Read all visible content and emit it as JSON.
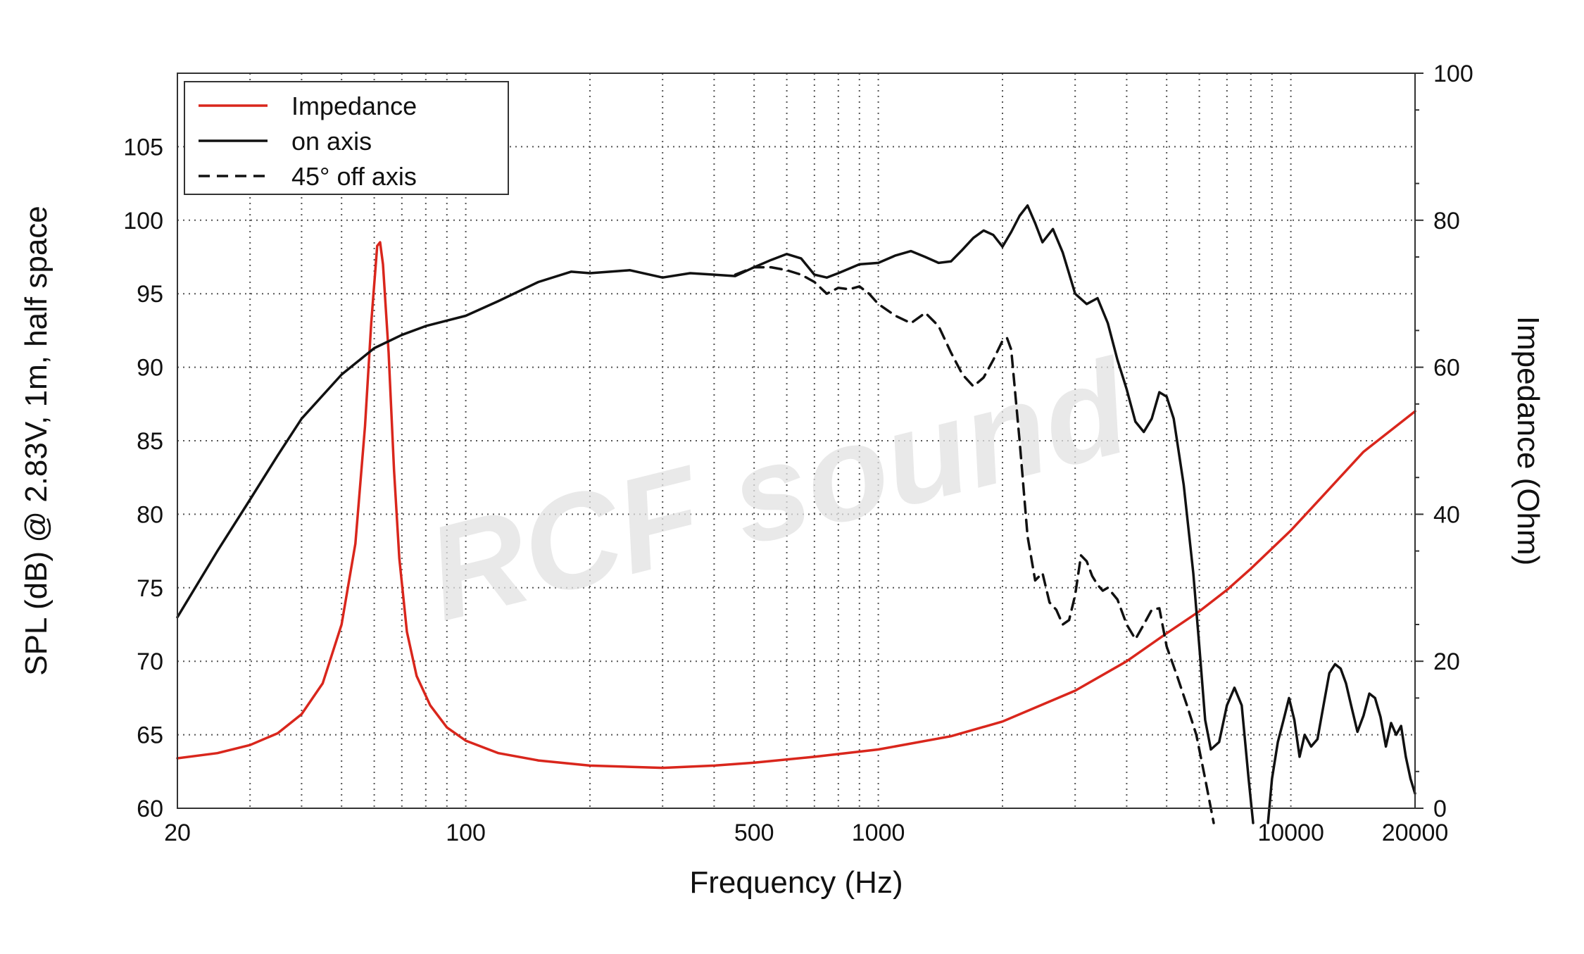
{
  "chart_data": {
    "type": "line",
    "xlabel": "Frequency (Hz)",
    "ylabel": "SPL (dB) @ 2.83V, 1m, half space",
    "y2label": "Impedance (Ohm)",
    "x_scale": "log",
    "xlim": [
      20,
      20000
    ],
    "ylim": [
      60,
      110
    ],
    "y2lim": [
      0,
      100
    ],
    "grid": true,
    "legend_position": "top-left",
    "x_ticks": [
      20,
      100,
      500,
      1000,
      10000,
      20000
    ],
    "x_tick_labels": [
      "20",
      "100",
      "500",
      "1000",
      "10000",
      "20000"
    ],
    "y_ticks": [
      60,
      65,
      70,
      75,
      80,
      85,
      90,
      95,
      100,
      105
    ],
    "y_tick_labels": [
      "60",
      "65",
      "70",
      "75",
      "80",
      "85",
      "90",
      "95",
      "100",
      "105"
    ],
    "y2_ticks": [
      0,
      20,
      40,
      60,
      80,
      100
    ],
    "y2_tick_labels": [
      "0",
      "20",
      "40",
      "60",
      "80",
      "100"
    ],
    "watermark": "RCF sound",
    "series": [
      {
        "name": "Impedance",
        "axis": "right",
        "color": "#d9261c",
        "dash": "solid",
        "points": [
          [
            20,
            6.8
          ],
          [
            25,
            7.5
          ],
          [
            30,
            8.6
          ],
          [
            35,
            10.2
          ],
          [
            40,
            12.8
          ],
          [
            45,
            17
          ],
          [
            50,
            25
          ],
          [
            54,
            36
          ],
          [
            57,
            52
          ],
          [
            59,
            66
          ],
          [
            61,
            76.5
          ],
          [
            62,
            77
          ],
          [
            63,
            74
          ],
          [
            65,
            62
          ],
          [
            67,
            46
          ],
          [
            69,
            34
          ],
          [
            72,
            24
          ],
          [
            76,
            18
          ],
          [
            82,
            14
          ],
          [
            90,
            11
          ],
          [
            100,
            9.2
          ],
          [
            120,
            7.5
          ],
          [
            150,
            6.5
          ],
          [
            200,
            5.8
          ],
          [
            300,
            5.5
          ],
          [
            400,
            5.8
          ],
          [
            500,
            6.2
          ],
          [
            700,
            7
          ],
          [
            1000,
            8
          ],
          [
            1500,
            9.8
          ],
          [
            2000,
            11.8
          ],
          [
            3000,
            16
          ],
          [
            4000,
            20
          ],
          [
            5000,
            23.8
          ],
          [
            6000,
            26.8
          ],
          [
            7000,
            29.7
          ],
          [
            8000,
            32.6
          ],
          [
            10000,
            37.8
          ],
          [
            12000,
            42.6
          ],
          [
            15000,
            48.5
          ],
          [
            20000,
            54
          ]
        ]
      },
      {
        "name": "on axis",
        "axis": "left",
        "color": "#111111",
        "dash": "solid",
        "points": [
          [
            20,
            73
          ],
          [
            25,
            77.5
          ],
          [
            30,
            81
          ],
          [
            35,
            84
          ],
          [
            40,
            86.5
          ],
          [
            50,
            89.5
          ],
          [
            60,
            91.3
          ],
          [
            70,
            92.2
          ],
          [
            80,
            92.8
          ],
          [
            100,
            93.5
          ],
          [
            120,
            94.5
          ],
          [
            150,
            95.8
          ],
          [
            180,
            96.5
          ],
          [
            200,
            96.4
          ],
          [
            250,
            96.6
          ],
          [
            300,
            96.1
          ],
          [
            350,
            96.4
          ],
          [
            400,
            96.3
          ],
          [
            450,
            96.2
          ],
          [
            500,
            96.8
          ],
          [
            550,
            97.3
          ],
          [
            600,
            97.7
          ],
          [
            650,
            97.4
          ],
          [
            700,
            96.3
          ],
          [
            750,
            96.1
          ],
          [
            800,
            96.4
          ],
          [
            900,
            97.0
          ],
          [
            1000,
            97.1
          ],
          [
            1100,
            97.6
          ],
          [
            1200,
            97.9
          ],
          [
            1300,
            97.5
          ],
          [
            1400,
            97.1
          ],
          [
            1500,
            97.2
          ],
          [
            1600,
            98.0
          ],
          [
            1700,
            98.8
          ],
          [
            1800,
            99.3
          ],
          [
            1900,
            99.0
          ],
          [
            2000,
            98.2
          ],
          [
            2100,
            99.2
          ],
          [
            2200,
            100.3
          ],
          [
            2300,
            101.0
          ],
          [
            2400,
            99.8
          ],
          [
            2500,
            98.5
          ],
          [
            2650,
            99.4
          ],
          [
            2800,
            97.8
          ],
          [
            3000,
            95.0
          ],
          [
            3200,
            94.3
          ],
          [
            3400,
            94.7
          ],
          [
            3600,
            93.0
          ],
          [
            3800,
            90.5
          ],
          [
            4000,
            88.5
          ],
          [
            4200,
            86.3
          ],
          [
            4400,
            85.6
          ],
          [
            4600,
            86.5
          ],
          [
            4800,
            88.3
          ],
          [
            5000,
            88.0
          ],
          [
            5200,
            86.5
          ],
          [
            5500,
            82.0
          ],
          [
            5800,
            76.0
          ],
          [
            6000,
            71.0
          ],
          [
            6200,
            66.0
          ],
          [
            6400,
            64.0
          ],
          [
            6700,
            64.5
          ],
          [
            7000,
            67.0
          ],
          [
            7300,
            68.2
          ],
          [
            7600,
            67.0
          ],
          [
            7900,
            62.0
          ],
          [
            8100,
            59.0
          ]
        ]
      },
      {
        "name": "on axis",
        "axis": "left",
        "color": "#111111",
        "dash": "solid",
        "points": [
          [
            8800,
            59.0
          ],
          [
            9000,
            62.0
          ],
          [
            9300,
            64.5
          ],
          [
            9600,
            66.0
          ],
          [
            9900,
            67.5
          ],
          [
            10200,
            66.0
          ],
          [
            10500,
            63.5
          ],
          [
            10800,
            65.0
          ],
          [
            11200,
            64.2
          ],
          [
            11600,
            64.7
          ],
          [
            12000,
            67.0
          ],
          [
            12400,
            69.2
          ],
          [
            12800,
            69.8
          ],
          [
            13200,
            69.5
          ],
          [
            13600,
            68.5
          ],
          [
            14000,
            67.0
          ],
          [
            14500,
            65.2
          ],
          [
            15000,
            66.3
          ],
          [
            15500,
            67.8
          ],
          [
            16000,
            67.5
          ],
          [
            16500,
            66.2
          ],
          [
            17000,
            64.2
          ],
          [
            17500,
            65.8
          ],
          [
            18000,
            65.0
          ],
          [
            18500,
            65.6
          ],
          [
            19000,
            63.5
          ],
          [
            19500,
            62.0
          ],
          [
            20000,
            61.0
          ]
        ]
      },
      {
        "name": "45° off axis",
        "axis": "left",
        "color": "#111111",
        "dash": "dashed",
        "points": [
          [
            450,
            96.3
          ],
          [
            500,
            96.8
          ],
          [
            550,
            96.8
          ],
          [
            600,
            96.6
          ],
          [
            650,
            96.3
          ],
          [
            700,
            95.8
          ],
          [
            750,
            95.0
          ],
          [
            800,
            95.4
          ],
          [
            850,
            95.3
          ],
          [
            900,
            95.5
          ],
          [
            950,
            95.0
          ],
          [
            1000,
            94.3
          ],
          [
            1100,
            93.5
          ],
          [
            1200,
            93.0
          ],
          [
            1300,
            93.7
          ],
          [
            1400,
            92.8
          ],
          [
            1500,
            91.0
          ],
          [
            1600,
            89.5
          ],
          [
            1700,
            88.7
          ],
          [
            1800,
            89.3
          ],
          [
            1900,
            90.5
          ],
          [
            2000,
            91.8
          ],
          [
            2050,
            92.0
          ],
          [
            2100,
            91.2
          ],
          [
            2200,
            85.0
          ],
          [
            2300,
            78.5
          ],
          [
            2400,
            75.5
          ],
          [
            2500,
            76.0
          ],
          [
            2600,
            74.0
          ],
          [
            2700,
            73.5
          ],
          [
            2800,
            72.5
          ],
          [
            2900,
            72.8
          ],
          [
            3000,
            74.5
          ],
          [
            3100,
            77.2
          ],
          [
            3200,
            76.8
          ],
          [
            3300,
            75.8
          ],
          [
            3400,
            75.2
          ],
          [
            3500,
            74.8
          ],
          [
            3600,
            75.0
          ],
          [
            3800,
            74.2
          ],
          [
            4000,
            72.5
          ],
          [
            4200,
            71.5
          ],
          [
            4400,
            72.5
          ],
          [
            4600,
            73.5
          ],
          [
            4800,
            73.6
          ],
          [
            5000,
            71.0
          ],
          [
            5300,
            69.0
          ],
          [
            5600,
            67.0
          ],
          [
            5900,
            65.0
          ],
          [
            6200,
            62.0
          ],
          [
            6500,
            59.0
          ]
        ]
      }
    ]
  }
}
